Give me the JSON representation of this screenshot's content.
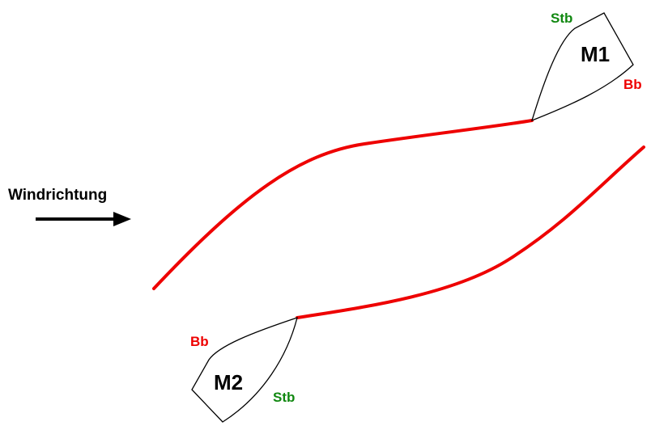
{
  "wind": {
    "label": "Windrichtung"
  },
  "boats": [
    {
      "name": "M1",
      "stb_label": "Stb",
      "bb_label": "Bb"
    },
    {
      "name": "M2",
      "stb_label": "Stb",
      "bb_label": "Bb"
    }
  ],
  "colors": {
    "track": "#ee0000",
    "starboard": "#118811",
    "port": "#ee0000",
    "outline": "#000000",
    "text": "#000000"
  }
}
